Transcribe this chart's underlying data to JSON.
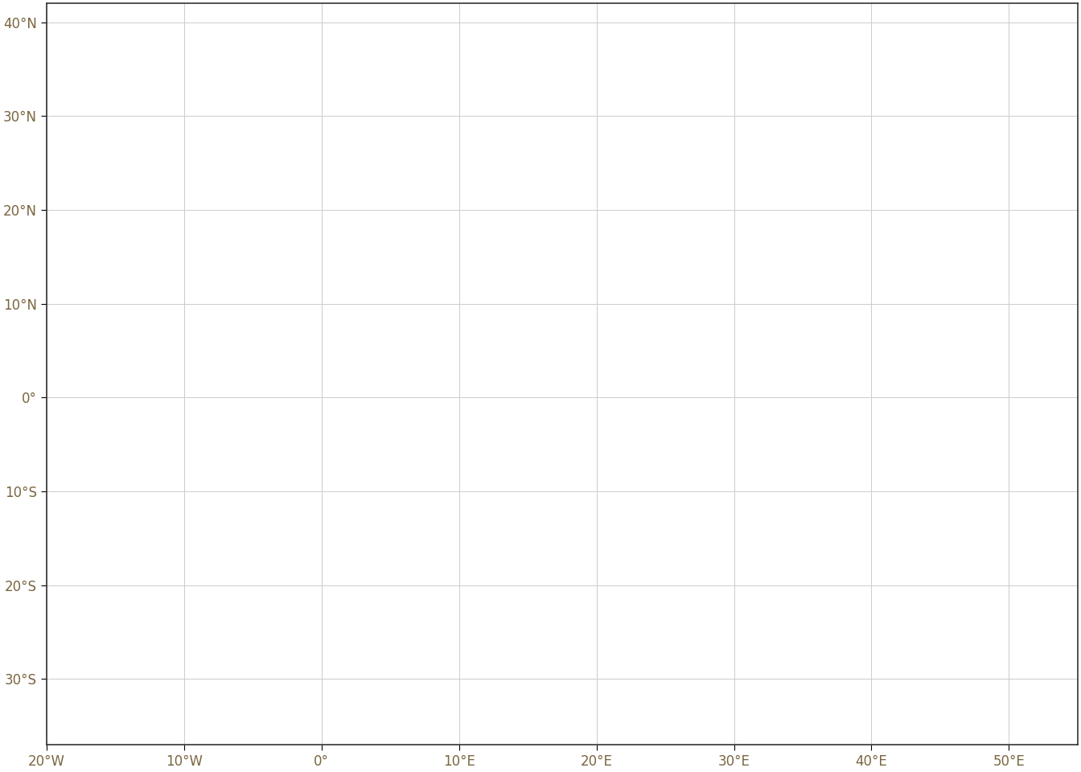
{
  "title": "",
  "xlim": [
    -20,
    55
  ],
  "ylim": [
    -37,
    42
  ],
  "xticks": [
    -20,
    -10,
    0,
    10,
    20,
    30,
    40,
    50
  ],
  "yticks": [
    -30,
    -20,
    -10,
    0,
    10,
    20,
    30,
    40
  ],
  "xtick_labels": [
    "20°W",
    "10°W",
    "0°",
    "10°E",
    "20°E",
    "30°E",
    "40°E",
    "50°E"
  ],
  "ytick_labels": [
    "30°S",
    "20°S",
    "10°S",
    "0°",
    "10°N",
    "20°N",
    "30°N",
    "40°N"
  ],
  "face_color": "#d9d9d9",
  "edge_color": "#4d4d4d",
  "background_color": "#ffffff",
  "grid_color": "#cccccc",
  "tick_label_color": "#7a6640",
  "figsize": [
    13.44,
    9.6
  ],
  "dpi": 100,
  "linewidth": 0.6
}
